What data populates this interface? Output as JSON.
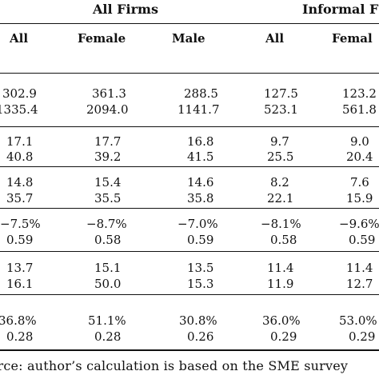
{
  "table": {
    "group_headers": {
      "all_firms": "All Firms",
      "informal": "Informal F"
    },
    "columns": [
      "All",
      "Female",
      "Male",
      "All",
      "Femal"
    ],
    "row_groups": [
      {
        "rows": [
          [
            "302.9",
            "361.3",
            "288.5",
            "127.5",
            "123.2"
          ],
          [
            "1335.4",
            "2094.0",
            "1141.7",
            "523.1",
            "561.8"
          ]
        ]
      },
      {
        "rows": [
          [
            "17.1",
            "17.7",
            "16.8",
            "9.7",
            "9.0"
          ],
          [
            "40.8",
            "39.2",
            "41.5",
            "25.5",
            "20.4"
          ]
        ]
      },
      {
        "rows": [
          [
            "14.8",
            "15.4",
            "14.6",
            "8.2",
            "7.6"
          ],
          [
            "35.7",
            "35.5",
            "35.8",
            "22.1",
            "15.9"
          ]
        ]
      },
      {
        "rows": [
          [
            "−7.5%",
            "−8.7%",
            "−7.0%",
            "−8.1%",
            "−9.6%"
          ],
          [
            "0.59",
            "0.58",
            "0.59",
            "0.58",
            "0.59"
          ]
        ]
      },
      {
        "rows": [
          [
            "13.7",
            "15.1",
            "13.5",
            "11.4",
            "11.4"
          ],
          [
            "16.1",
            "50.0",
            "15.3",
            "11.9",
            "12.7"
          ]
        ]
      },
      {
        "rows": [
          [
            "36.8%",
            "51.1%",
            "30.8%",
            "36.0%",
            "53.0%"
          ],
          [
            "0.28",
            "0.28",
            "0.26",
            "0.29",
            "0.29"
          ]
        ]
      }
    ]
  },
  "source_note": "urce: author’s calculation is based on the SME survey"
}
